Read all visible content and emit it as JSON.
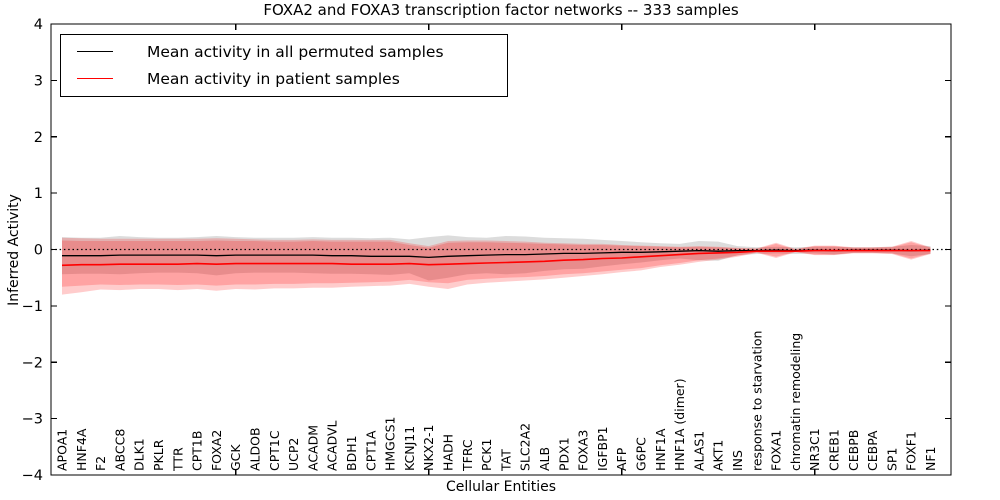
{
  "colors": {
    "background": "#ffffff",
    "frame": "#000000",
    "permuted_line": "#000000",
    "patient_line": "#ff0000",
    "permuted_band_fill": "rgba(128,128,128,0.28)",
    "patient_band_fill": "rgba(255,0,0,0.20)"
  },
  "chart_data": {
    "type": "line",
    "title": "FOXA2 and FOXA3 transcription factor networks -- 333 samples",
    "xlabel": "Cellular Entities",
    "ylabel": "Inferred Activity",
    "ylim": [
      -4,
      4
    ],
    "ytick_values": [
      4,
      3,
      2,
      1,
      0,
      -1,
      -2,
      -3,
      -4
    ],
    "ytick_labels": [
      "4",
      "3",
      "2",
      "1",
      "0",
      "−1",
      "−2",
      "−3",
      "−4"
    ],
    "xtick_major_indices": [
      9,
      19,
      29,
      39
    ],
    "grid": false,
    "legend_position": "upper left",
    "reference_line": {
      "y": 0,
      "style": "dotted",
      "color": "#000000"
    },
    "categories": [
      "APOA1",
      "HNF4A",
      "F2",
      "ABCC8",
      "DLK1",
      "PKLR",
      "TTR",
      "CPT1B",
      "FOXA2",
      "GCK",
      "ALDOB",
      "CPT1C",
      "UCP2",
      "ACADM",
      "ACADVL",
      "BDH1",
      "CPT1A",
      "HMGCS1",
      "KCNJ11",
      "NKX2-1",
      "HADH",
      "TFRC",
      "PCK1",
      "TAT",
      "SLC2A2",
      "ALB",
      "PDX1",
      "FOXA3",
      "IGFBP1",
      "AFP",
      "G6PC",
      "HNF1A",
      "HNF1A (dimer)",
      "ALAS1",
      "AKT1",
      "INS",
      "response to starvation",
      "FOXA1",
      "chromatin remodeling",
      "NR3C1",
      "CREB1",
      "CEBPB",
      "CEBPA",
      "SP1",
      "FOXF1",
      "NF1"
    ],
    "series": [
      {
        "name": "Mean activity in all permuted samples",
        "color": "#000000",
        "values": [
          -0.11,
          -0.11,
          -0.11,
          -0.1,
          -0.1,
          -0.1,
          -0.1,
          -0.1,
          -0.11,
          -0.1,
          -0.1,
          -0.1,
          -0.1,
          -0.1,
          -0.11,
          -0.11,
          -0.12,
          -0.12,
          -0.12,
          -0.14,
          -0.12,
          -0.11,
          -0.1,
          -0.09,
          -0.09,
          -0.08,
          -0.07,
          -0.07,
          -0.06,
          -0.05,
          -0.05,
          -0.04,
          -0.03,
          -0.02,
          -0.03,
          -0.02,
          -0.02,
          -0.01,
          -0.02,
          -0.01,
          -0.02,
          -0.01,
          -0.01,
          -0.01,
          -0.02,
          -0.01
        ],
        "band_upper": [
          0.22,
          0.21,
          0.21,
          0.24,
          0.22,
          0.21,
          0.21,
          0.22,
          0.24,
          0.22,
          0.21,
          0.21,
          0.21,
          0.22,
          0.21,
          0.21,
          0.2,
          0.21,
          0.18,
          0.22,
          0.25,
          0.22,
          0.21,
          0.24,
          0.23,
          0.21,
          0.2,
          0.19,
          0.17,
          0.15,
          0.13,
          0.11,
          0.1,
          0.15,
          0.14,
          0.06,
          0.04,
          0.05,
          0.04,
          0.05,
          0.05,
          0.04,
          0.04,
          0.05,
          0.08,
          0.06
        ],
        "band_lower": [
          -0.44,
          -0.43,
          -0.43,
          -0.44,
          -0.42,
          -0.41,
          -0.41,
          -0.42,
          -0.46,
          -0.42,
          -0.41,
          -0.41,
          -0.41,
          -0.42,
          -0.43,
          -0.43,
          -0.44,
          -0.45,
          -0.42,
          -0.55,
          -0.5,
          -0.44,
          -0.42,
          -0.44,
          -0.42,
          -0.38,
          -0.35,
          -0.34,
          -0.3,
          -0.26,
          -0.23,
          -0.19,
          -0.16,
          -0.19,
          -0.2,
          -0.1,
          -0.08,
          -0.07,
          -0.08,
          -0.07,
          -0.09,
          -0.06,
          -0.06,
          -0.07,
          -0.12,
          -0.08
        ]
      },
      {
        "name": "Mean activity in patient samples",
        "color": "#ff0000",
        "values": [
          -0.28,
          -0.27,
          -0.27,
          -0.26,
          -0.26,
          -0.26,
          -0.26,
          -0.25,
          -0.26,
          -0.25,
          -0.25,
          -0.25,
          -0.25,
          -0.25,
          -0.25,
          -0.26,
          -0.26,
          -0.26,
          -0.25,
          -0.27,
          -0.26,
          -0.25,
          -0.24,
          -0.23,
          -0.22,
          -0.21,
          -0.19,
          -0.18,
          -0.16,
          -0.15,
          -0.13,
          -0.11,
          -0.09,
          -0.07,
          -0.06,
          -0.05,
          -0.03,
          -0.03,
          -0.03,
          -0.02,
          -0.02,
          -0.02,
          -0.02,
          -0.02,
          -0.02,
          -0.02
        ],
        "band_upper": [
          0.16,
          0.15,
          0.15,
          0.15,
          0.15,
          0.15,
          0.15,
          0.15,
          0.16,
          0.15,
          0.15,
          0.14,
          0.14,
          0.15,
          0.14,
          0.14,
          0.14,
          0.14,
          0.08,
          0.03,
          0.12,
          0.13,
          0.13,
          0.12,
          0.11,
          0.1,
          0.09,
          0.08,
          0.08,
          0.07,
          0.06,
          0.05,
          0.04,
          0.05,
          0.04,
          0.02,
          0.01,
          0.1,
          0.0,
          0.06,
          0.06,
          0.03,
          0.03,
          0.04,
          0.13,
          0.03
        ],
        "band_lower": [
          -0.66,
          -0.64,
          -0.62,
          -0.63,
          -0.62,
          -0.62,
          -0.63,
          -0.62,
          -0.64,
          -0.62,
          -0.62,
          -0.61,
          -0.61,
          -0.6,
          -0.6,
          -0.59,
          -0.58,
          -0.57,
          -0.54,
          -0.58,
          -0.6,
          -0.54,
          -0.52,
          -0.5,
          -0.49,
          -0.47,
          -0.44,
          -0.42,
          -0.39,
          -0.36,
          -0.33,
          -0.28,
          -0.24,
          -0.19,
          -0.16,
          -0.11,
          -0.05,
          -0.13,
          -0.04,
          -0.09,
          -0.09,
          -0.06,
          -0.06,
          -0.07,
          -0.16,
          -0.07
        ],
        "outer_band_upper": [
          0.21,
          0.2,
          0.19,
          0.19,
          0.19,
          0.19,
          0.19,
          0.19,
          0.2,
          0.19,
          0.18,
          0.17,
          0.17,
          0.18,
          0.17,
          0.17,
          0.17,
          0.17,
          0.11,
          0.06,
          0.15,
          0.16,
          0.16,
          0.15,
          0.14,
          0.12,
          0.11,
          0.1,
          0.1,
          0.08,
          0.07,
          0.06,
          0.05,
          0.06,
          0.05,
          0.03,
          0.02,
          0.12,
          0.01,
          0.07,
          0.07,
          0.04,
          0.04,
          0.05,
          0.15,
          0.04
        ],
        "outer_band_lower": [
          -0.8,
          -0.76,
          -0.71,
          -0.72,
          -0.7,
          -0.7,
          -0.72,
          -0.7,
          -0.73,
          -0.7,
          -0.71,
          -0.69,
          -0.69,
          -0.68,
          -0.68,
          -0.66,
          -0.65,
          -0.64,
          -0.61,
          -0.66,
          -0.7,
          -0.62,
          -0.59,
          -0.57,
          -0.55,
          -0.53,
          -0.5,
          -0.47,
          -0.44,
          -0.4,
          -0.37,
          -0.31,
          -0.27,
          -0.22,
          -0.18,
          -0.13,
          -0.06,
          -0.15,
          -0.05,
          -0.1,
          -0.1,
          -0.07,
          -0.07,
          -0.08,
          -0.18,
          -0.08
        ]
      }
    ]
  }
}
